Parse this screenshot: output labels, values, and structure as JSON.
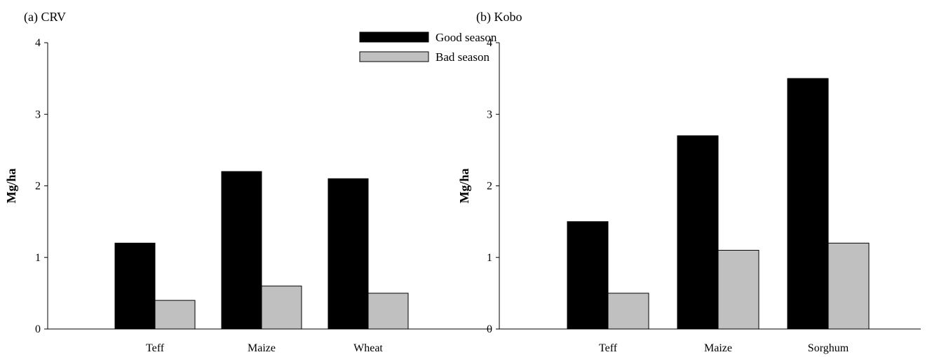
{
  "chart_data": [
    {
      "type": "bar",
      "title": "(a) CRV",
      "ylabel": "Mg/ha",
      "xlabel": "",
      "categories": [
        "Teff",
        "Maize",
        "Wheat"
      ],
      "ylim": [
        0,
        4
      ],
      "yticks": [
        "0",
        "1",
        "2",
        "3",
        "4"
      ],
      "series": [
        {
          "name": "Good season",
          "values": [
            1.2,
            2.2,
            2.1
          ],
          "color": "#000000"
        },
        {
          "name": "Bad season",
          "values": [
            0.4,
            0.6,
            0.5
          ],
          "color": "#c0c0c0"
        }
      ],
      "legend": {
        "position": "top-right",
        "entries": [
          "Good season",
          "Bad season"
        ]
      },
      "grid": false
    },
    {
      "type": "bar",
      "title": "(b) Kobo",
      "ylabel": "Mg/ha",
      "xlabel": "",
      "categories": [
        "Teff",
        "Maize",
        "Sorghum"
      ],
      "ylim": [
        0,
        4
      ],
      "yticks": [
        "0",
        "1",
        "2",
        "3",
        "4"
      ],
      "series": [
        {
          "name": "Good season",
          "values": [
            1.5,
            2.7,
            3.5
          ],
          "color": "#000000"
        },
        {
          "name": "Bad season",
          "values": [
            0.5,
            1.1,
            1.2
          ],
          "color": "#c0c0c0"
        }
      ],
      "grid": false
    }
  ]
}
